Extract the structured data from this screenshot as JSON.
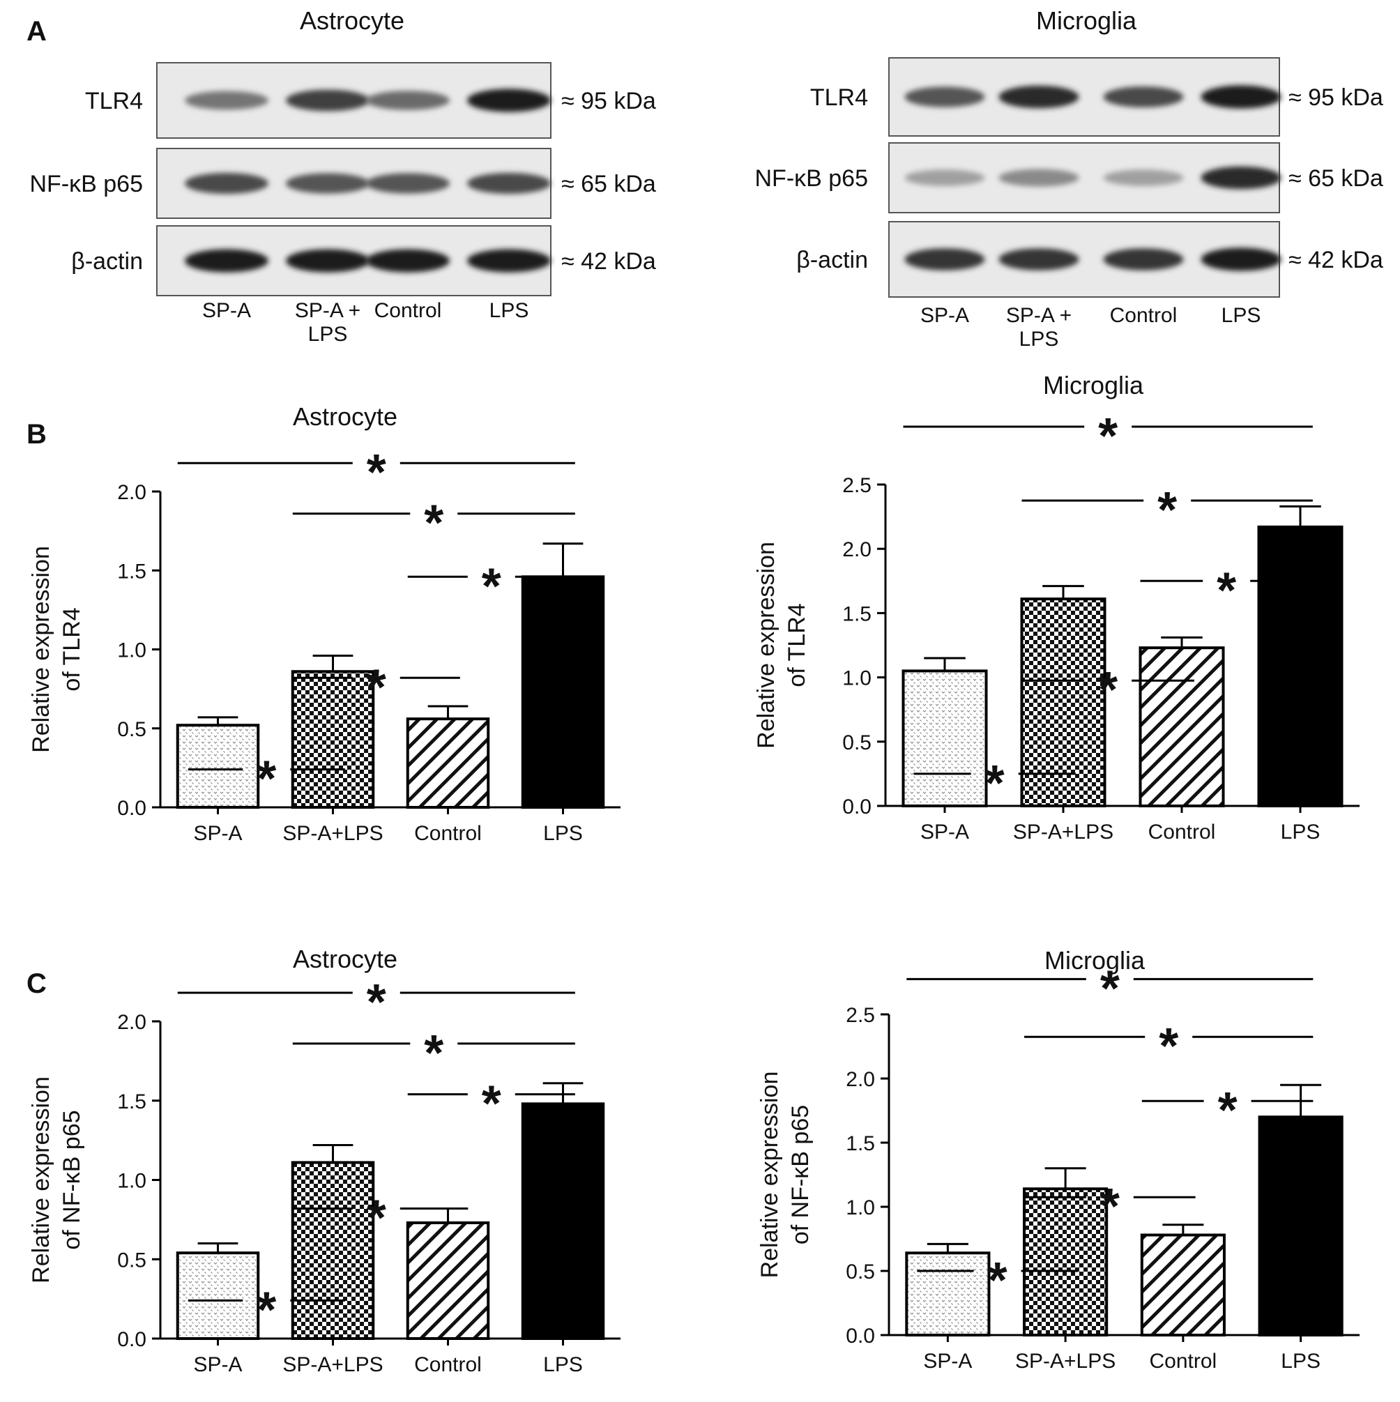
{
  "panels": {
    "A": "A",
    "B": "B",
    "C": "C"
  },
  "blots": [
    {
      "title": "Astrocyte",
      "rows": [
        {
          "label": "TLR4",
          "size": "≈ 95 kDa",
          "intensity": [
            0.55,
            0.8,
            0.6,
            0.95
          ]
        },
        {
          "label": "NF-κB p65",
          "size": "≈ 65 kDa",
          "intensity": [
            0.75,
            0.7,
            0.7,
            0.75
          ]
        },
        {
          "label": "β-actin",
          "size": "≈ 42 kDa",
          "intensity": [
            0.95,
            0.95,
            0.95,
            0.95
          ]
        }
      ],
      "lanes": [
        [
          "SP-A"
        ],
        [
          "SP-A +",
          "LPS"
        ],
        [
          "Control"
        ],
        [
          "LPS"
        ]
      ]
    },
    {
      "title": "Microglia",
      "rows": [
        {
          "label": "TLR4",
          "size": "≈ 95 kDa",
          "intensity": [
            0.7,
            0.9,
            0.75,
            0.95
          ]
        },
        {
          "label": "NF-κB p65",
          "size": "≈ 65 kDa",
          "intensity": [
            0.35,
            0.45,
            0.35,
            0.9
          ]
        },
        {
          "label": "β-actin",
          "size": "≈ 42 kDa",
          "intensity": [
            0.85,
            0.85,
            0.85,
            0.95
          ]
        }
      ],
      "lanes": [
        [
          "SP-A"
        ],
        [
          "SP-A +",
          "LPS"
        ],
        [
          "Control"
        ],
        [
          "LPS"
        ]
      ]
    }
  ],
  "colors": {
    "bar_outline": "#000000",
    "lps_fill": "#000000",
    "sig_line": "#000000"
  },
  "chart_data": [
    {
      "type": "bar",
      "title": "Astrocyte",
      "ylabel": [
        "Relative expression",
        "of TLR4"
      ],
      "categories": [
        "SP-A",
        "SP-A+LPS",
        "Control",
        "LPS"
      ],
      "values": [
        0.52,
        0.86,
        0.56,
        1.46
      ],
      "errors": [
        0.05,
        0.1,
        0.08,
        0.21
      ],
      "fills": [
        "dots",
        "checker",
        "hatch",
        "solid"
      ],
      "ylim": [
        0,
        2.0
      ],
      "yticks": [
        "0.0",
        "0.5",
        "1.0",
        "1.5",
        "2.0"
      ],
      "significance": [
        {
          "from": 0,
          "to": 3,
          "label": "*",
          "level": 1.09
        },
        {
          "from": 1,
          "to": 3,
          "label": "*",
          "level": 0.93
        },
        {
          "from": 2,
          "to": 3,
          "label": "*",
          "level": 0.73
        },
        {
          "from": 1,
          "to": 2,
          "label": "*",
          "level": 0.41
        },
        {
          "from": 0,
          "to": 1,
          "label": "*",
          "level": 0.12
        }
      ]
    },
    {
      "type": "bar",
      "title": "Microglia",
      "ylabel": [
        "Relative expression",
        "of TLR4"
      ],
      "categories": [
        "SP-A",
        "SP-A+LPS",
        "Control",
        "LPS"
      ],
      "values": [
        1.05,
        1.61,
        1.23,
        2.17
      ],
      "errors": [
        0.1,
        0.1,
        0.08,
        0.16
      ],
      "fills": [
        "dots",
        "checker",
        "hatch",
        "solid"
      ],
      "ylim": [
        0,
        2.5
      ],
      "yticks": [
        "0.0",
        "0.5",
        "1.0",
        "1.5",
        "2.0",
        "2.5"
      ],
      "significance": [
        {
          "from": 0,
          "to": 3,
          "label": "*",
          "level": 1.18
        },
        {
          "from": 1,
          "to": 3,
          "label": "*",
          "level": 0.95
        },
        {
          "from": 2,
          "to": 3,
          "label": "*",
          "level": 0.7
        },
        {
          "from": 1,
          "to": 2,
          "label": "*",
          "level": 0.39
        },
        {
          "from": 0,
          "to": 1,
          "label": "*",
          "level": 0.1
        }
      ]
    },
    {
      "type": "bar",
      "title": "Astrocyte",
      "ylabel": [
        "Relative expression",
        "of NF-κB p65"
      ],
      "categories": [
        "SP-A",
        "SP-A+LPS",
        "Control",
        "LPS"
      ],
      "values": [
        0.54,
        1.11,
        0.73,
        1.48
      ],
      "errors": [
        0.06,
        0.11,
        0.09,
        0.13
      ],
      "fills": [
        "dots",
        "checker",
        "hatch",
        "solid"
      ],
      "ylim": [
        0,
        2.0
      ],
      "yticks": [
        "0.0",
        "0.5",
        "1.0",
        "1.5",
        "2.0"
      ],
      "significance": [
        {
          "from": 0,
          "to": 3,
          "label": "*",
          "level": 1.09
        },
        {
          "from": 1,
          "to": 3,
          "label": "*",
          "level": 0.93
        },
        {
          "from": 2,
          "to": 3,
          "label": "*",
          "level": 0.77
        },
        {
          "from": 1,
          "to": 2,
          "label": "*",
          "level": 0.41
        },
        {
          "from": 0,
          "to": 1,
          "label": "*",
          "level": 0.12
        }
      ]
    },
    {
      "type": "bar",
      "title": "Microglia",
      "ylabel": [
        "Relative expression",
        "of NF-κB p65"
      ],
      "categories": [
        "SP-A",
        "SP-A+LPS",
        "Control",
        "LPS"
      ],
      "values": [
        0.64,
        1.14,
        0.78,
        1.7
      ],
      "errors": [
        0.07,
        0.16,
        0.08,
        0.25
      ],
      "fills": [
        "dots",
        "checker",
        "hatch",
        "solid"
      ],
      "ylim": [
        0,
        2.5
      ],
      "yticks": [
        "0.0",
        "0.5",
        "1.0",
        "1.5",
        "2.0",
        "2.5"
      ],
      "significance": [
        {
          "from": 0,
          "to": 3,
          "label": "*",
          "level": 1.11
        },
        {
          "from": 1,
          "to": 3,
          "label": "*",
          "level": 0.93
        },
        {
          "from": 2,
          "to": 3,
          "label": "*",
          "level": 0.73
        },
        {
          "from": 1,
          "to": 2,
          "label": "*",
          "level": 0.43
        },
        {
          "from": 0,
          "to": 1,
          "label": "*",
          "level": 0.2
        }
      ]
    }
  ]
}
